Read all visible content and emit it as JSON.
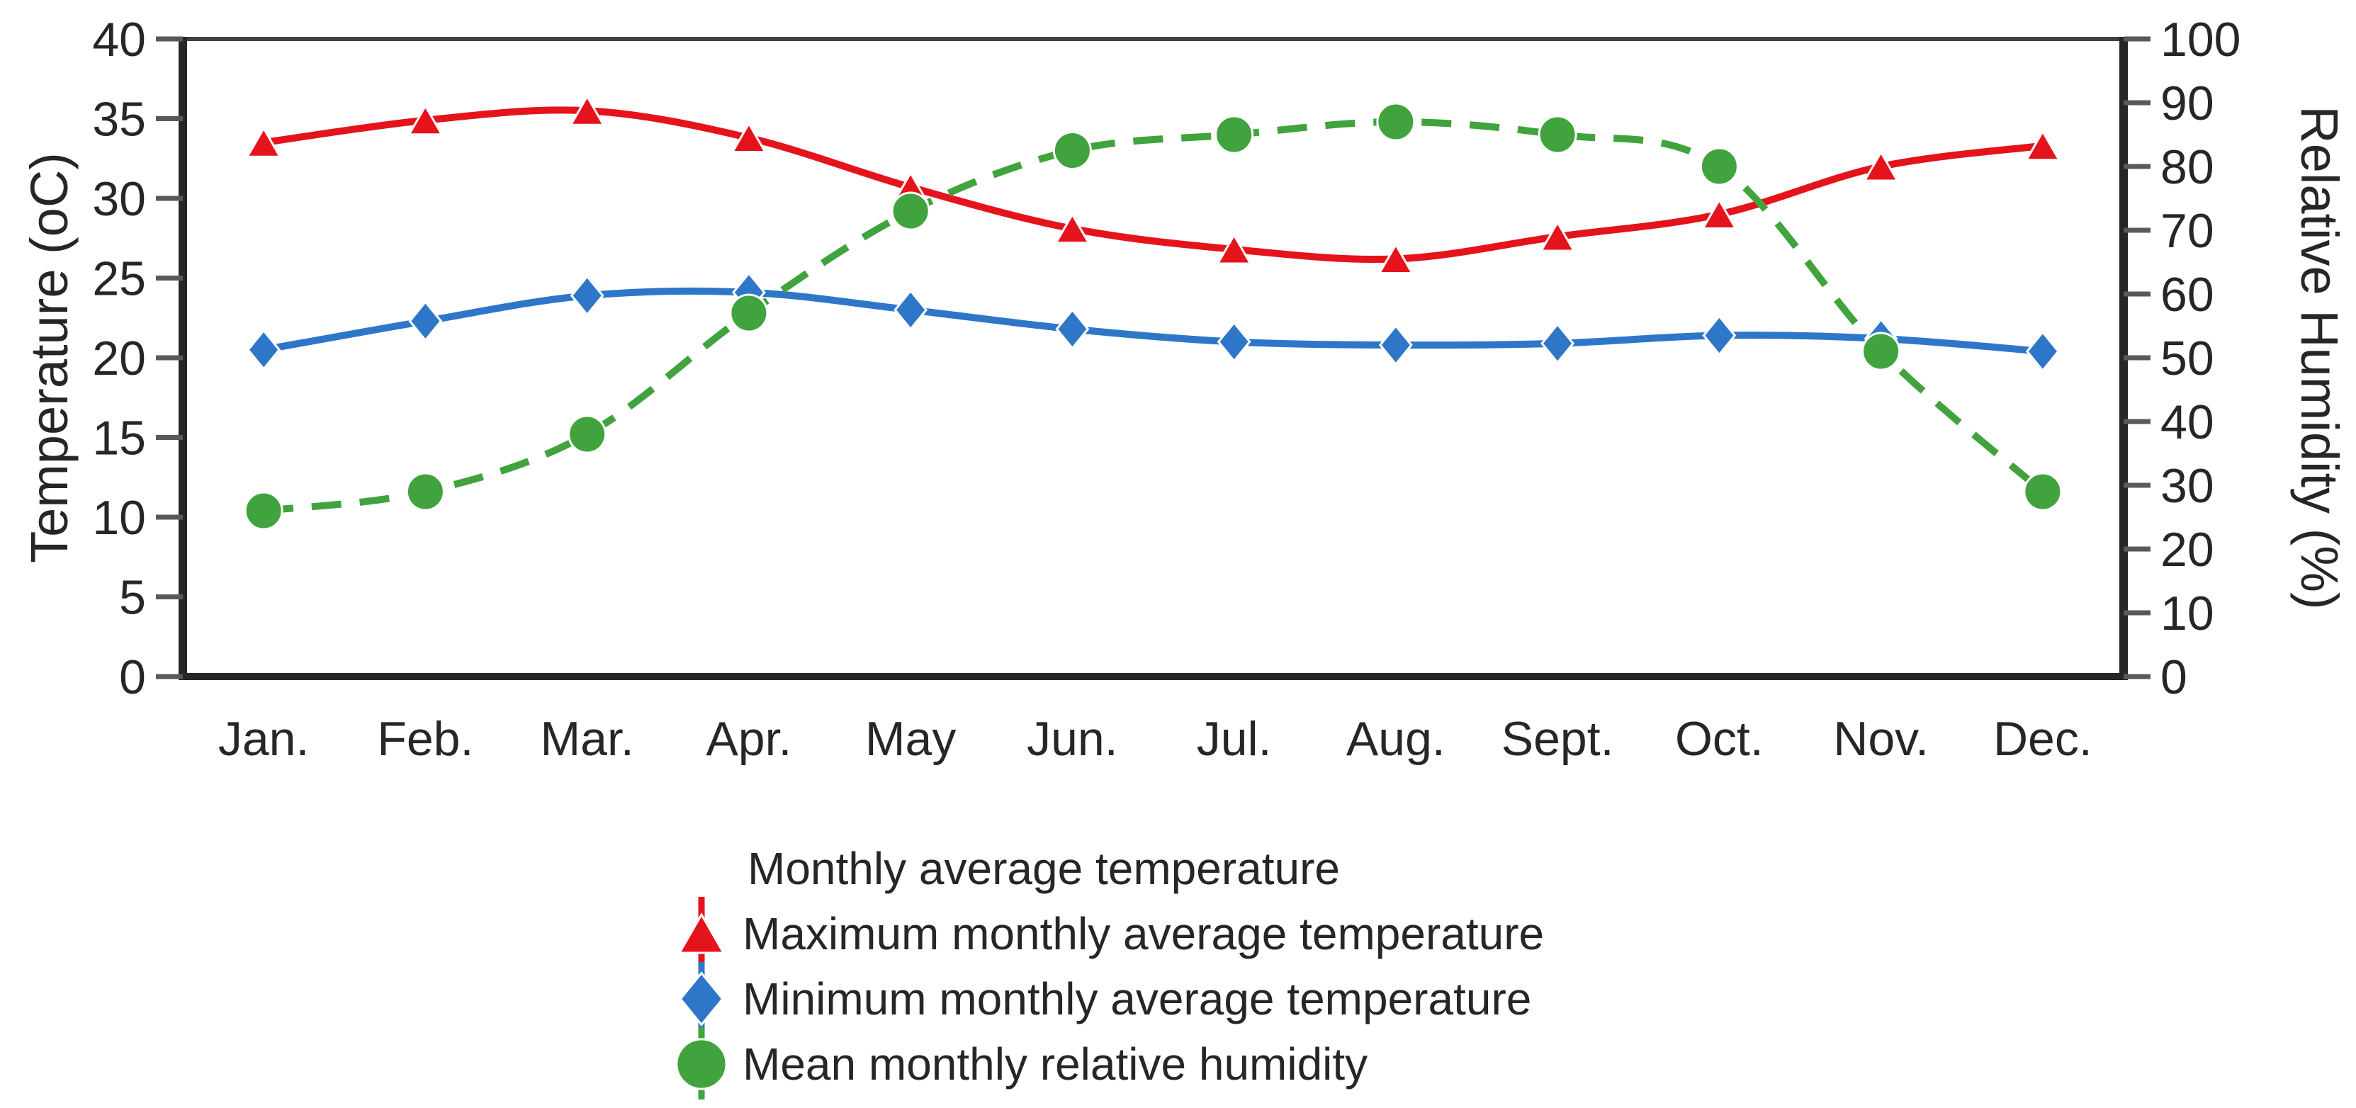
{
  "chart_data": {
    "type": "line",
    "categories": [
      "Jan.",
      "Feb.",
      "Mar.",
      "Apr.",
      "May",
      "Jun.",
      "Jul.",
      "Aug.",
      "Sept.",
      "Oct.",
      "Nov.",
      "Dec."
    ],
    "series": [
      {
        "name": "Maximum monthly average temperature",
        "axis": "left",
        "color": "#e4131c",
        "marker": "triangle",
        "line": "solid",
        "values": [
          33.5,
          34.9,
          35.5,
          33.8,
          30.7,
          28.1,
          26.8,
          26.2,
          27.6,
          29.0,
          32.0,
          33.3
        ]
      },
      {
        "name": "Minimum monthly average temperature",
        "axis": "left",
        "color": "#2e77c8",
        "marker": "diamond",
        "line": "solid",
        "values": [
          20.5,
          22.3,
          23.9,
          24.1,
          23.0,
          21.8,
          21.0,
          20.8,
          20.9,
          21.4,
          21.2,
          20.4
        ]
      },
      {
        "name": "Mean monthly relative humidity",
        "axis": "right",
        "color": "#41a33d",
        "marker": "circle",
        "line": "dashed",
        "values": [
          26,
          29,
          38,
          57,
          73,
          82.5,
          85,
          87,
          85,
          80,
          51,
          29
        ]
      }
    ],
    "legend_title": "Monthly average temperature",
    "legend_position": "bottom",
    "grid": false,
    "left_axis": {
      "title": "Temperature (oC)",
      "min": 0,
      "max": 40,
      "step": 5,
      "tick_labels": [
        "0",
        "5",
        "10",
        "15",
        "20",
        "25",
        "30",
        "35",
        "40"
      ]
    },
    "right_axis": {
      "title": "Relative Humidity (%)",
      "min": 0,
      "max": 100,
      "step": 10,
      "tick_labels": [
        "0",
        "10",
        "20",
        "30",
        "40",
        "50",
        "60",
        "70",
        "80",
        "90",
        "100"
      ]
    }
  },
  "styles": {
    "background": "#ffffff",
    "axis_line_color": "#262626",
    "plot_border_color": "#404040",
    "tick_color": "#595959",
    "text_color": "#262626"
  }
}
